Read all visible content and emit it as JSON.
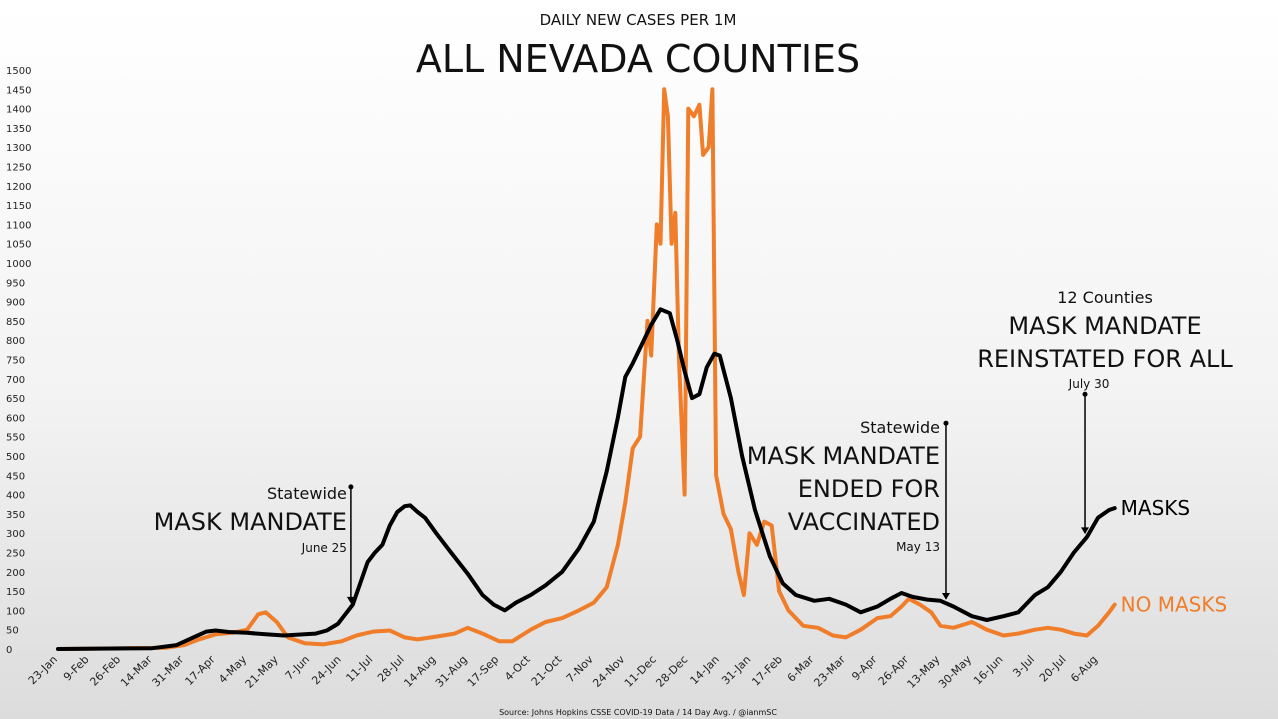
{
  "chart_data": {
    "type": "line",
    "title": "ALL NEVADA COUNTIES",
    "subtitle": "DAILY NEW CASES PER 1M",
    "source": "Source: Johns Hopkins CSSE COVID-19 Data / 14 Day Avg. / @ianmSC",
    "xlabel": "",
    "ylabel": "",
    "ylim": [
      0,
      1500
    ],
    "yticks": [
      0,
      50,
      100,
      150,
      200,
      250,
      300,
      350,
      400,
      450,
      500,
      550,
      600,
      650,
      700,
      750,
      800,
      850,
      900,
      950,
      1000,
      1050,
      1100,
      1150,
      1200,
      1250,
      1300,
      1350,
      1400,
      1450,
      1500
    ],
    "x_start": "2020-01-23",
    "x_tick_labels": [
      "23-Jan",
      "9-Feb",
      "26-Feb",
      "14-Mar",
      "31-Mar",
      "17-Apr",
      "4-May",
      "21-May",
      "7-Jun",
      "24-Jun",
      "11-Jul",
      "28-Jul",
      "14-Aug",
      "31-Aug",
      "17-Sep",
      "4-Oct",
      "21-Oct",
      "7-Nov",
      "24-Nov",
      "11-Dec",
      "28-Dec",
      "14-Jan",
      "31-Jan",
      "17-Feb",
      "6-Mar",
      "23-Mar",
      "9-Apr",
      "26-Apr",
      "13-May",
      "30-May",
      "16-Jun",
      "3-Jul",
      "20-Jul",
      "6-Aug"
    ],
    "x_tick_dates": [
      "2020-01-23",
      "2020-02-09",
      "2020-02-26",
      "2020-03-14",
      "2020-03-31",
      "2020-04-17",
      "2020-05-04",
      "2020-05-21",
      "2020-06-07",
      "2020-06-24",
      "2020-07-11",
      "2020-07-28",
      "2020-08-14",
      "2020-08-31",
      "2020-09-17",
      "2020-10-04",
      "2020-10-21",
      "2020-11-07",
      "2020-11-24",
      "2020-12-11",
      "2020-12-28",
      "2021-01-14",
      "2021-01-31",
      "2021-02-17",
      "2021-03-06",
      "2021-03-23",
      "2021-04-09",
      "2021-04-26",
      "2021-05-13",
      "2021-05-30",
      "2021-06-16",
      "2021-07-03",
      "2021-07-20",
      "2021-08-06"
    ],
    "series": [
      {
        "name": "MASKS",
        "color": "#000000",
        "points": [
          [
            "2020-01-23",
            0
          ],
          [
            "2020-03-14",
            2
          ],
          [
            "2020-03-27",
            10
          ],
          [
            "2020-04-05",
            30
          ],
          [
            "2020-04-12",
            45
          ],
          [
            "2020-04-17",
            48
          ],
          [
            "2020-04-24",
            44
          ],
          [
            "2020-05-04",
            42
          ],
          [
            "2020-05-14",
            38
          ],
          [
            "2020-05-24",
            35
          ],
          [
            "2020-06-04",
            38
          ],
          [
            "2020-06-10",
            40
          ],
          [
            "2020-06-16",
            48
          ],
          [
            "2020-06-22",
            65
          ],
          [
            "2020-06-26",
            90
          ],
          [
            "2020-06-30",
            115
          ],
          [
            "2020-07-04",
            170
          ],
          [
            "2020-07-08",
            225
          ],
          [
            "2020-07-12",
            250
          ],
          [
            "2020-07-16",
            270
          ],
          [
            "2020-07-20",
            320
          ],
          [
            "2020-07-24",
            355
          ],
          [
            "2020-07-28",
            370
          ],
          [
            "2020-07-31",
            372
          ],
          [
            "2020-08-04",
            355
          ],
          [
            "2020-08-08",
            340
          ],
          [
            "2020-08-14",
            300
          ],
          [
            "2020-08-22",
            250
          ],
          [
            "2020-08-31",
            195
          ],
          [
            "2020-09-08",
            140
          ],
          [
            "2020-09-14",
            115
          ],
          [
            "2020-09-20",
            100
          ],
          [
            "2020-09-26",
            120
          ],
          [
            "2020-10-04",
            140
          ],
          [
            "2020-10-12",
            165
          ],
          [
            "2020-10-21",
            200
          ],
          [
            "2020-10-30",
            260
          ],
          [
            "2020-11-07",
            330
          ],
          [
            "2020-11-14",
            460
          ],
          [
            "2020-11-20",
            600
          ],
          [
            "2020-11-24",
            705
          ],
          [
            "2020-11-28",
            740
          ],
          [
            "2020-12-03",
            790
          ],
          [
            "2020-12-08",
            840
          ],
          [
            "2020-12-13",
            880
          ],
          [
            "2020-12-18",
            870
          ],
          [
            "2020-12-22",
            800
          ],
          [
            "2020-12-26",
            720
          ],
          [
            "2020-12-30",
            650
          ],
          [
            "2021-01-03",
            660
          ],
          [
            "2021-01-07",
            730
          ],
          [
            "2021-01-11",
            765
          ],
          [
            "2021-01-14",
            760
          ],
          [
            "2021-01-20",
            650
          ],
          [
            "2021-01-26",
            500
          ],
          [
            "2021-02-02",
            360
          ],
          [
            "2021-02-10",
            240
          ],
          [
            "2021-02-17",
            170
          ],
          [
            "2021-02-24",
            140
          ],
          [
            "2021-03-06",
            125
          ],
          [
            "2021-03-14",
            130
          ],
          [
            "2021-03-23",
            115
          ],
          [
            "2021-03-31",
            95
          ],
          [
            "2021-04-09",
            110
          ],
          [
            "2021-04-16",
            130
          ],
          [
            "2021-04-22",
            145
          ],
          [
            "2021-04-28",
            135
          ],
          [
            "2021-05-06",
            128
          ],
          [
            "2021-05-13",
            125
          ],
          [
            "2021-05-20",
            110
          ],
          [
            "2021-05-30",
            85
          ],
          [
            "2021-06-07",
            75
          ],
          [
            "2021-06-16",
            85
          ],
          [
            "2021-06-24",
            95
          ],
          [
            "2021-07-03",
            140
          ],
          [
            "2021-07-10",
            160
          ],
          [
            "2021-07-17",
            200
          ],
          [
            "2021-07-24",
            250
          ],
          [
            "2021-07-31",
            290
          ],
          [
            "2021-08-06",
            340
          ],
          [
            "2021-08-12",
            360
          ],
          [
            "2021-08-15",
            365
          ]
        ]
      },
      {
        "name": "NO MASKS",
        "color": "#ef7d29",
        "points": [
          [
            "2020-01-23",
            0
          ],
          [
            "2020-03-21",
            3
          ],
          [
            "2020-03-31",
            10
          ],
          [
            "2020-04-08",
            25
          ],
          [
            "2020-04-17",
            38
          ],
          [
            "2020-04-26",
            42
          ],
          [
            "2020-05-04",
            50
          ],
          [
            "2020-05-10",
            90
          ],
          [
            "2020-05-14",
            95
          ],
          [
            "2020-05-20",
            70
          ],
          [
            "2020-05-26",
            30
          ],
          [
            "2020-06-04",
            15
          ],
          [
            "2020-06-14",
            12
          ],
          [
            "2020-06-24",
            20
          ],
          [
            "2020-07-02",
            35
          ],
          [
            "2020-07-11",
            45
          ],
          [
            "2020-07-20",
            48
          ],
          [
            "2020-07-28",
            30
          ],
          [
            "2020-08-04",
            25
          ],
          [
            "2020-08-14",
            32
          ],
          [
            "2020-08-24",
            40
          ],
          [
            "2020-08-31",
            55
          ],
          [
            "2020-09-08",
            40
          ],
          [
            "2020-09-17",
            20
          ],
          [
            "2020-09-24",
            20
          ],
          [
            "2020-10-04",
            50
          ],
          [
            "2020-10-12",
            70
          ],
          [
            "2020-10-21",
            80
          ],
          [
            "2020-10-30",
            100
          ],
          [
            "2020-11-07",
            120
          ],
          [
            "2020-11-14",
            160
          ],
          [
            "2020-11-20",
            270
          ],
          [
            "2020-11-24",
            380
          ],
          [
            "2020-11-28",
            520
          ],
          [
            "2020-12-02",
            550
          ],
          [
            "2020-12-06",
            850
          ],
          [
            "2020-12-08",
            760
          ],
          [
            "2020-12-11",
            1100
          ],
          [
            "2020-12-13",
            1050
          ],
          [
            "2020-12-15",
            1450
          ],
          [
            "2020-12-17",
            1380
          ],
          [
            "2020-12-19",
            1050
          ],
          [
            "2020-12-21",
            1130
          ],
          [
            "2020-12-23",
            750
          ],
          [
            "2020-12-26",
            400
          ],
          [
            "2020-12-28",
            1400
          ],
          [
            "2020-12-31",
            1380
          ],
          [
            "2021-01-03",
            1410
          ],
          [
            "2021-01-05",
            1280
          ],
          [
            "2021-01-08",
            1300
          ],
          [
            "2021-01-10",
            1450
          ],
          [
            "2021-01-12",
            450
          ],
          [
            "2021-01-16",
            350
          ],
          [
            "2021-01-20",
            310
          ],
          [
            "2021-01-24",
            200
          ],
          [
            "2021-01-27",
            140
          ],
          [
            "2021-01-30",
            300
          ],
          [
            "2021-02-03",
            270
          ],
          [
            "2021-02-07",
            330
          ],
          [
            "2021-02-11",
            320
          ],
          [
            "2021-02-15",
            150
          ],
          [
            "2021-02-20",
            100
          ],
          [
            "2021-02-28",
            60
          ],
          [
            "2021-03-08",
            55
          ],
          [
            "2021-03-16",
            35
          ],
          [
            "2021-03-23",
            30
          ],
          [
            "2021-03-31",
            50
          ],
          [
            "2021-04-09",
            80
          ],
          [
            "2021-04-16",
            85
          ],
          [
            "2021-04-22",
            110
          ],
          [
            "2021-04-26",
            130
          ],
          [
            "2021-05-02",
            115
          ],
          [
            "2021-05-08",
            95
          ],
          [
            "2021-05-13",
            60
          ],
          [
            "2021-05-20",
            55
          ],
          [
            "2021-05-30",
            70
          ],
          [
            "2021-06-07",
            50
          ],
          [
            "2021-06-16",
            35
          ],
          [
            "2021-06-24",
            40
          ],
          [
            "2021-07-03",
            50
          ],
          [
            "2021-07-10",
            55
          ],
          [
            "2021-07-17",
            50
          ],
          [
            "2021-07-24",
            40
          ],
          [
            "2021-07-31",
            35
          ],
          [
            "2021-08-06",
            60
          ],
          [
            "2021-08-12",
            95
          ],
          [
            "2021-08-15",
            115
          ]
        ]
      }
    ],
    "annotations": [
      {
        "date": "2020-06-29",
        "value": 420,
        "label_small": "Statewide",
        "label_big": [
          "MASK MANDATE"
        ],
        "date_label": "June 25"
      },
      {
        "date": "2021-05-16",
        "value": 585,
        "label_small": "Statewide",
        "label_big": [
          "MASK MANDATE",
          "ENDED FOR",
          "VACCINATED"
        ],
        "date_label": "May 13"
      },
      {
        "date": "2021-07-30",
        "value": 660,
        "label_small": "12 Counties",
        "label_big": [
          "MASK MANDATE",
          "REINSTATED FOR ALL"
        ],
        "date_label": "July 30"
      }
    ],
    "grid": false,
    "legend": "inline at line ends"
  }
}
